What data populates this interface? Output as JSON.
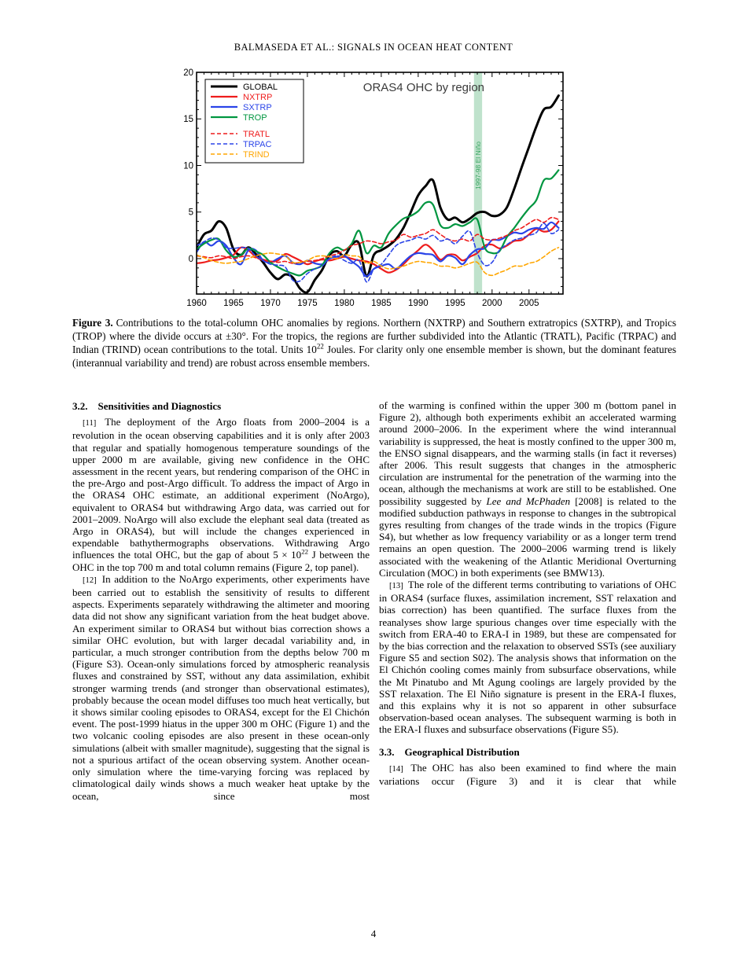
{
  "article": {
    "running_head": "BALMASEDA ET AL.: SIGNALS IN OCEAN HEAT CONTENT",
    "page_number": "4"
  },
  "caption": {
    "segments": [
      {
        "t": "Figure 3.",
        "s": "b"
      },
      {
        "t": "Contributions to the total-column OHC anomalies by regions. Northern (NXTRP) and Southern extratropics (SXTRP), and Tropics (TROP) where the divide occurs at ±30°. For the tropics, the regions are further subdivided into the Atlantic (TRATL), Pacific (TRPAC) and Indian (TRIND) ocean contributions to the total. Units 10",
        "s": ""
      },
      {
        "t": "22",
        "s": "sup"
      },
      {
        "t": " Joules. For clarity only one ensemble member is shown, but the dominant features (interannual variability and trend) are robust across ensemble members.",
        "s": ""
      }
    ]
  },
  "columns": {
    "left": [
      {
        "type": "heading",
        "number": "3.2.",
        "text": "Sensitivities and Diagnostics"
      },
      {
        "type": "paragraph",
        "indent": true,
        "justify_last": false,
        "segments": [
          {
            "t": "[11] ",
            "s": "m"
          },
          {
            "t": "The deployment of the Argo floats from 2000–2004 is a revolution in the ocean observing capabilities and it is only after 2003 that regular and spatially homogenous temperature soundings of the upper 2000 m are available, giving new confidence in the OHC assessment in the recent years, but rendering comparison of the OHC in the pre-Argo and post-Argo difficult. To address the impact of Argo in the ORAS4 OHC estimate, an additional experiment (NoArgo), equivalent to ORAS4 but withdrawing Argo data, was carried out for 2001–2009. NoArgo will also exclude the elephant seal data (treated as Argo in ORAS4), but will include the changes experienced in expendable bathythermographs observations. Withdrawing Argo influences the total OHC, but the gap of about 5 × 10",
            "s": ""
          },
          {
            "t": "22",
            "s": "sup"
          },
          {
            "t": " J between the OHC in the top 700 m and total column remains (Figure 2, top panel).",
            "s": ""
          }
        ]
      },
      {
        "type": "paragraph",
        "indent": true,
        "justify_last": true,
        "segments": [
          {
            "t": "[12] ",
            "s": "m"
          },
          {
            "t": "In addition to the NoArgo experiments, other experiments have been carried out to establish the sensitivity of results to different aspects. Experiments separately withdrawing the altimeter and mooring data did not show any significant variation from the heat budget above. An experiment similar to ORAS4 but without bias correction shows a similar OHC evolution, but with larger decadal variability and, in particular, a much stronger contribution from the depths below 700 m (Figure S3). Ocean-only simulations forced by atmospheric reanalysis fluxes and constrained by SST, without any data assimilation, exhibit stronger warming trends (and stronger than observational estimates), probably because the ocean model diffuses too much heat vertically, but it shows similar cooling episodes to ORAS4, except for the El Chichón event. The post-1999 hiatus in the upper 300 m OHC (Figure 1) and the two volcanic cooling episodes are also present in these ocean-only simulations (albeit with smaller magnitude), suggesting that the signal is not a spurious artifact of the ocean observing system. Another ocean-only simulation where the time-varying forcing was replaced by climatological daily winds shows a much weaker heat uptake by the ocean, since most",
            "s": ""
          }
        ]
      }
    ],
    "right": [
      {
        "type": "paragraph",
        "indent": false,
        "justify_last": false,
        "segments": [
          {
            "t": "of the warming is confined within the upper 300 m (bottom panel in Figure 2), although both experiments exhibit an accelerated warming around 2000–2006. In the experiment where the wind interannual variability is suppressed, the heat is mostly confined to the upper 300 m, the ENSO signal disappears, and the warming stalls (in fact it reverses) after 2006. This result suggests that changes in the atmospheric circulation are instrumental for the penetration of the warming into the ocean, although the mechanisms at work are still to be established. One possibility suggested by ",
            "s": ""
          },
          {
            "t": "Lee and McPhaden",
            "s": "i"
          },
          {
            "t": " [2008] is related to the modified subduction pathways in response to changes in the subtropical gyres resulting from changes of the trade winds in the tropics (Figure S4), but whether as low frequency variability or as a longer term trend remains an open question. The 2000–2006 warming trend is likely associated with the weakening of the Atlantic Meridional Overturning Circulation (MOC) in both experiments (see BMW13).",
            "s": ""
          }
        ]
      },
      {
        "type": "paragraph",
        "indent": true,
        "justify_last": false,
        "segments": [
          {
            "t": "[13] ",
            "s": "m"
          },
          {
            "t": "The role of the different terms contributing to variations of OHC in ORAS4 (surface fluxes, assimilation increment, SST relaxation and bias correction) has been quantified. The surface fluxes from the reanalyses show large spurious changes over time especially with the switch from ERA-40 to ERA-I in 1989, but these are compensated for by the bias correction and the relaxation to observed SSTs (see auxiliary Figure S5 and section S02). The analysis shows that information on the El Chichón cooling comes mainly from subsurface observations, while the Mt Pinatubo and Mt Agung coolings are largely provided by the SST relaxation. The El Niño signature is present in the ERA-I fluxes, and this explains why it is not so apparent in other subsurface observation-based ocean analyses. The subsequent warming is both in the ERA-I fluxes and subsurface observations (Figure S5).",
            "s": ""
          }
        ]
      },
      {
        "type": "heading",
        "number": "3.3.",
        "text": "Geographical Distribution"
      },
      {
        "type": "paragraph",
        "indent": true,
        "justify_last": true,
        "segments": [
          {
            "t": "[14] ",
            "s": "m"
          },
          {
            "t": "The OHC has also been examined to find where the main variations occur (Figure 3) and it is clear that while",
            "s": ""
          }
        ]
      }
    ]
  },
  "chart_data": {
    "type": "line",
    "title": "ORAS4 OHC by region",
    "title_color": "#3a3a3a",
    "xlim": [
      1960,
      2009.6
    ],
    "ylim": [
      -3.8,
      20
    ],
    "xticks": [
      1960,
      1965,
      1970,
      1975,
      1980,
      1985,
      1990,
      1995,
      2000,
      2005
    ],
    "yticks": [
      0,
      5,
      10,
      15,
      20
    ],
    "minor_x_step": 1,
    "minor_y_step": 1,
    "grid": false,
    "legend_position": "top-left",
    "annotation_band": {
      "x0": 1997.55,
      "x1": 1998.65,
      "color": "#bfe2cc",
      "label": "1997-98 El Niño",
      "label_color": "#3aa662"
    },
    "x": [
      1960,
      1961,
      1962,
      1963,
      1964,
      1965,
      1966,
      1967,
      1968,
      1969,
      1970,
      1971,
      1972,
      1973,
      1974,
      1975,
      1976,
      1977,
      1978,
      1979,
      1980,
      1981,
      1982,
      1983,
      1984,
      1985,
      1986,
      1987,
      1988,
      1989,
      1990,
      1991,
      1992,
      1993,
      1994,
      1995,
      1996,
      1997,
      1998,
      1999,
      2000,
      2001,
      2002,
      2003,
      2004,
      2005,
      2006,
      2007,
      2008,
      2009
    ],
    "series": [
      {
        "name": "GLOBAL",
        "color": "#000000",
        "width": 3,
        "dash": null,
        "values": [
          1.2,
          2.6,
          3.0,
          4.0,
          3.3,
          1.0,
          0.4,
          1.2,
          0.5,
          -0.4,
          -1.5,
          -2.2,
          -1.7,
          -2.0,
          -3.2,
          -3.6,
          -2.3,
          -1.2,
          0.4,
          0.8,
          0.3,
          1.5,
          1.6,
          -1.9,
          0.4,
          0.9,
          1.4,
          2.1,
          3.3,
          5.0,
          6.8,
          7.8,
          8.4,
          5.5,
          4.2,
          4.4,
          3.9,
          4.3,
          4.9,
          5.0,
          4.6,
          4.7,
          5.5,
          7.5,
          9.8,
          12.0,
          14.2,
          16.0,
          16.3,
          17.5
        ]
      },
      {
        "name": "NXTRP",
        "color": "#ee1c1c",
        "width": 2.2,
        "dash": null,
        "values": [
          -0.5,
          -0.4,
          -0.2,
          -0.1,
          0.1,
          0.4,
          1.2,
          0.9,
          0.2,
          -0.1,
          -0.3,
          -0.2,
          0.5,
          0.2,
          -0.2,
          -0.6,
          -0.3,
          -0.1,
          -0.2,
          0.0,
          0.2,
          0.0,
          -0.2,
          -0.3,
          -0.6,
          -1.1,
          -1.5,
          -1.2,
          -0.6,
          0.2,
          0.9,
          1.5,
          0.9,
          -0.1,
          0.4,
          0.4,
          -0.2,
          0.2,
          0.6,
          1.4,
          1.5,
          1.1,
          1.4,
          1.9,
          2.0,
          2.6,
          3.2,
          2.9,
          3.1,
          4.0
        ]
      },
      {
        "name": "SXTRP",
        "color": "#2a44e8",
        "width": 2.2,
        "dash": null,
        "values": [
          0.7,
          1.8,
          1.4,
          1.9,
          1.4,
          0.1,
          -0.6,
          0.9,
          0.9,
          -0.2,
          -0.4,
          0.0,
          0.3,
          -0.4,
          -0.6,
          -0.2,
          -0.5,
          -0.6,
          0.0,
          0.2,
          0.3,
          -0.3,
          -0.9,
          -1.9,
          -1.1,
          -0.8,
          -0.6,
          -1.1,
          -0.4,
          0.3,
          0.6,
          0.5,
          0.4,
          -0.3,
          0.3,
          0.1,
          -0.6,
          0.4,
          1.0,
          1.1,
          2.0,
          2.0,
          2.4,
          2.8,
          2.7,
          3.1,
          3.3,
          3.2,
          3.9,
          3.3
        ]
      },
      {
        "name": "TROP",
        "color": "#009640",
        "width": 2.2,
        "dash": null,
        "values": [
          1.0,
          1.6,
          2.0,
          2.1,
          0.9,
          0.2,
          0.4,
          1.1,
          0.8,
          0.4,
          -0.4,
          -0.9,
          -1.3,
          -1.6,
          -1.8,
          -1.3,
          -1.1,
          -0.7,
          0.6,
          1.2,
          0.9,
          1.6,
          3.0,
          0.6,
          1.4,
          1.2,
          2.7,
          3.6,
          4.3,
          4.6,
          5.1,
          6.0,
          5.8,
          3.6,
          3.3,
          3.7,
          3.5,
          3.9,
          4.2,
          1.2,
          0.6,
          0.8,
          2.3,
          3.3,
          4.4,
          5.4,
          6.3,
          8.4,
          8.6,
          9.5
        ]
      },
      {
        "name": "TRATL",
        "color": "#ee1c1c",
        "width": 1.6,
        "dash": "5,3",
        "values": [
          0.3,
          0.2,
          0.1,
          0.3,
          0.2,
          0.0,
          0.2,
          0.3,
          0.1,
          -0.2,
          -0.3,
          -0.4,
          -0.3,
          -0.5,
          -0.4,
          -0.3,
          -0.2,
          0.0,
          0.3,
          0.5,
          0.9,
          1.4,
          1.6,
          1.9,
          1.8,
          1.6,
          1.8,
          2.0,
          2.6,
          2.3,
          2.5,
          2.7,
          3.1,
          2.6,
          2.1,
          1.9,
          2.1,
          1.9,
          2.6,
          2.1,
          2.0,
          2.2,
          2.5,
          3.0,
          3.3,
          3.8,
          4.2,
          3.9,
          4.4,
          4.2
        ]
      },
      {
        "name": "TRPAC",
        "color": "#2a44e8",
        "width": 1.6,
        "dash": "5,3",
        "values": [
          1.4,
          1.8,
          2.2,
          2.0,
          1.2,
          1.1,
          1.2,
          1.1,
          0.3,
          -0.2,
          -0.6,
          -0.7,
          -0.9,
          -2.3,
          -2.4,
          -1.6,
          -1.1,
          -0.8,
          0.0,
          0.3,
          -0.2,
          -0.5,
          -0.2,
          -2.5,
          -1.1,
          -0.6,
          0.4,
          1.4,
          1.8,
          2.0,
          2.3,
          2.1,
          2.5,
          1.9,
          2.1,
          1.6,
          2.4,
          2.9,
          0.6,
          -0.7,
          -0.4,
          0.9,
          1.5,
          2.0,
          2.2,
          2.5,
          2.8,
          3.8,
          2.7,
          3.1
        ]
      },
      {
        "name": "TRIND",
        "color": "#ffa600",
        "width": 1.6,
        "dash": "5,3",
        "values": [
          0.4,
          0.1,
          -0.2,
          -0.4,
          -0.5,
          -0.4,
          -0.3,
          0.0,
          0.3,
          0.5,
          0.6,
          0.5,
          0.3,
          -0.4,
          -0.4,
          -0.2,
          0.2,
          0.3,
          0.2,
          0.0,
          0.4,
          0.3,
          0.2,
          -0.5,
          -0.3,
          -0.8,
          -1.1,
          -1.0,
          -0.8,
          -0.5,
          -0.3,
          -0.4,
          -0.5,
          -0.8,
          -0.8,
          -1.0,
          -0.8,
          -0.5,
          -0.4,
          -1.5,
          -1.8,
          -1.5,
          -1.2,
          -0.8,
          -0.8,
          -0.5,
          -0.3,
          0.2,
          0.8,
          1.2
        ]
      }
    ]
  }
}
